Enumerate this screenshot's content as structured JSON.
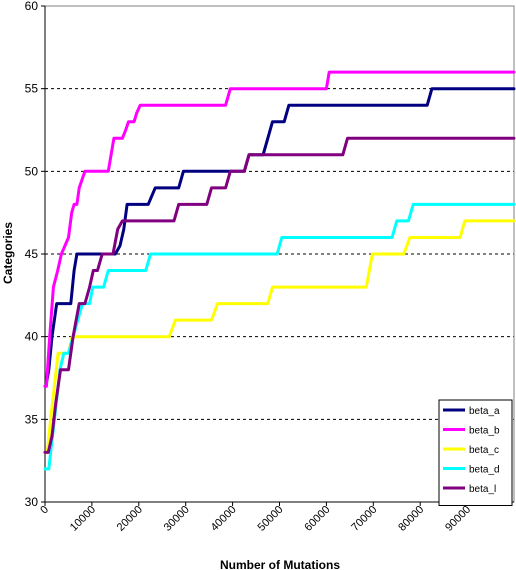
{
  "chart_data": {
    "type": "line",
    "xlabel": "Number of Mutations",
    "ylabel": "Categories",
    "xlim": [
      0,
      100000
    ],
    "ylim": [
      30,
      60
    ],
    "x_ticks": [
      0,
      10000,
      20000,
      30000,
      40000,
      50000,
      60000,
      70000,
      80000,
      90000
    ],
    "y_ticks": [
      30,
      35,
      40,
      45,
      50,
      55,
      60
    ],
    "grid": "horizontal dashed at 35, 40, 45, 50, 55",
    "legend_position": "bottom-right",
    "series": [
      {
        "name": "beta_a",
        "color": "#000080",
        "points": [
          [
            0,
            37
          ],
          [
            200,
            37
          ],
          [
            800,
            38
          ],
          [
            1500,
            40
          ],
          [
            2500,
            42
          ],
          [
            5500,
            42
          ],
          [
            6200,
            44
          ],
          [
            6800,
            45
          ],
          [
            15000,
            45
          ],
          [
            16000,
            45.5
          ],
          [
            16800,
            46.5
          ],
          [
            17500,
            48
          ],
          [
            22000,
            48
          ],
          [
            23500,
            49
          ],
          [
            28500,
            49
          ],
          [
            29500,
            50
          ],
          [
            42500,
            50
          ],
          [
            43500,
            51
          ],
          [
            46500,
            51
          ],
          [
            47500,
            52
          ],
          [
            48500,
            53
          ],
          [
            51000,
            53
          ],
          [
            52000,
            54
          ],
          [
            81500,
            54
          ],
          [
            82500,
            55
          ],
          [
            100000,
            55
          ]
        ]
      },
      {
        "name": "beta_b",
        "color": "#ff00ff",
        "points": [
          [
            0,
            37
          ],
          [
            300,
            37
          ],
          [
            1000,
            40
          ],
          [
            1800,
            43
          ],
          [
            2700,
            44
          ],
          [
            3500,
            45
          ],
          [
            5000,
            46
          ],
          [
            5700,
            47.5
          ],
          [
            6200,
            48
          ],
          [
            6800,
            48
          ],
          [
            7300,
            49
          ],
          [
            8500,
            50
          ],
          [
            13500,
            50
          ],
          [
            14700,
            52
          ],
          [
            16500,
            52
          ],
          [
            17200,
            52.5
          ],
          [
            17800,
            53
          ],
          [
            19000,
            53
          ],
          [
            19500,
            53.5
          ],
          [
            20300,
            54
          ],
          [
            38500,
            54
          ],
          [
            39500,
            55
          ],
          [
            60000,
            55
          ],
          [
            60600,
            56
          ],
          [
            100000,
            56
          ]
        ]
      },
      {
        "name": "beta_c",
        "color": "#ffff00",
        "points": [
          [
            0,
            33
          ],
          [
            500,
            33
          ],
          [
            1200,
            35
          ],
          [
            2000,
            37
          ],
          [
            2800,
            39
          ],
          [
            5000,
            39
          ],
          [
            5800,
            40
          ],
          [
            26500,
            40
          ],
          [
            27800,
            41
          ],
          [
            35500,
            41
          ],
          [
            36800,
            42
          ],
          [
            47500,
            42
          ],
          [
            48500,
            43
          ],
          [
            68500,
            43
          ],
          [
            69800,
            45
          ],
          [
            76500,
            45
          ],
          [
            77800,
            46
          ],
          [
            88500,
            46
          ],
          [
            89500,
            47
          ],
          [
            100000,
            47
          ]
        ]
      },
      {
        "name": "beta_d",
        "color": "#00ffff",
        "points": [
          [
            0,
            32
          ],
          [
            800,
            32
          ],
          [
            1600,
            34
          ],
          [
            2400,
            36
          ],
          [
            3200,
            38
          ],
          [
            4000,
            39
          ],
          [
            5000,
            39
          ],
          [
            6000,
            40
          ],
          [
            7000,
            41
          ],
          [
            8000,
            42
          ],
          [
            9500,
            42
          ],
          [
            10200,
            43
          ],
          [
            12500,
            43
          ],
          [
            13500,
            44
          ],
          [
            21500,
            44
          ],
          [
            22500,
            45
          ],
          [
            49500,
            45
          ],
          [
            50500,
            46
          ],
          [
            74000,
            46
          ],
          [
            75000,
            47
          ],
          [
            77500,
            47
          ],
          [
            78500,
            48
          ],
          [
            100000,
            48
          ]
        ]
      },
      {
        "name": "beta_l",
        "color": "#800080",
        "points": [
          [
            0,
            33
          ],
          [
            700,
            33
          ],
          [
            1500,
            34
          ],
          [
            2300,
            36
          ],
          [
            3300,
            38
          ],
          [
            5000,
            38
          ],
          [
            6000,
            40
          ],
          [
            7300,
            42
          ],
          [
            8500,
            42
          ],
          [
            9500,
            43
          ],
          [
            10300,
            44
          ],
          [
            11200,
            44
          ],
          [
            12200,
            45
          ],
          [
            14500,
            45
          ],
          [
            15500,
            46.5
          ],
          [
            16500,
            47
          ],
          [
            27500,
            47
          ],
          [
            28500,
            48
          ],
          [
            34500,
            48
          ],
          [
            35500,
            49
          ],
          [
            38500,
            49
          ],
          [
            39500,
            50
          ],
          [
            42500,
            50
          ],
          [
            43500,
            51
          ],
          [
            63500,
            51
          ],
          [
            64500,
            52
          ],
          [
            100000,
            52
          ]
        ]
      }
    ]
  }
}
